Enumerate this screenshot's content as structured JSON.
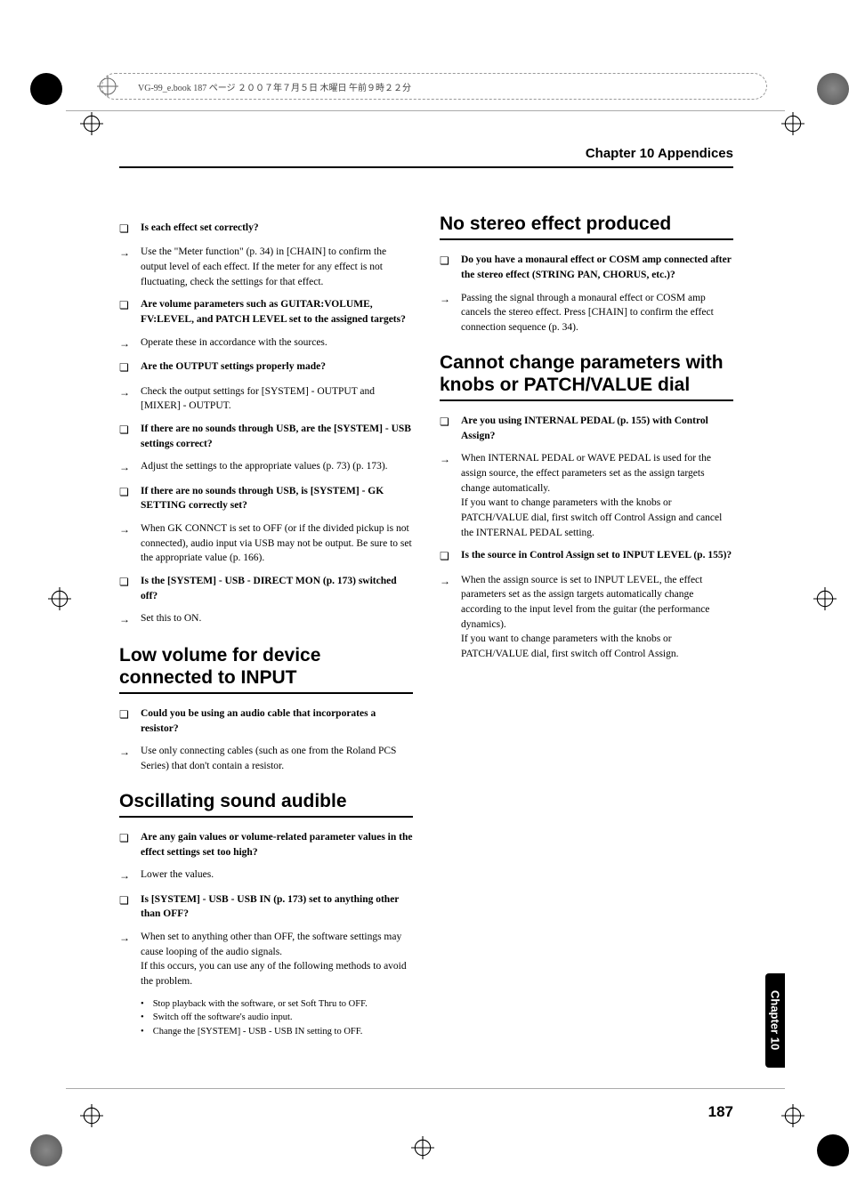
{
  "meta_bar": "VG-99_e.book 187 ページ ２００７年７月５日 木曜日 午前９時２２分",
  "chapter_header": "Chapter 10 Appendices",
  "side_tab": "Chapter 10",
  "page_number": "187",
  "colors": {
    "text": "#000000",
    "rule": "#000000",
    "light_rule": "#aaaaaa",
    "dash": "#999999"
  },
  "left": {
    "items1": [
      {
        "q": true,
        "text": "Is each effect set correctly?"
      },
      {
        "q": false,
        "text": "Use the \"Meter function\" (p. 34) in [CHAIN] to confirm the output level of each effect. If the meter for any effect is not fluctuating, check the settings for that effect."
      },
      {
        "q": true,
        "text": "Are volume parameters such as GUITAR:VOLUME, FV:LEVEL, and PATCH LEVEL set to the assigned targets?"
      },
      {
        "q": false,
        "text": "Operate these in accordance with the sources."
      },
      {
        "q": true,
        "text": "Are the OUTPUT settings properly made?"
      },
      {
        "q": false,
        "text": "Check the output settings for [SYSTEM] - OUTPUT and [MIXER]  - OUTPUT."
      },
      {
        "q": true,
        "text": "If there are no sounds through USB, are the [SYSTEM]  - USB settings correct?"
      },
      {
        "q": false,
        "text": "Adjust the settings to the appropriate values (p. 73) (p. 173)."
      },
      {
        "q": true,
        "text": "If there are no sounds through USB, is [SYSTEM]  - GK SETTING correctly set?"
      },
      {
        "q": false,
        "text": "When GK CONNCT is set to OFF (or if the divided pickup is not connected), audio input via USB may not be output. Be sure to set the appropriate value (p. 166)."
      },
      {
        "q": true,
        "text": "Is the [SYSTEM] - USB - DIRECT MON (p. 173) switched off?"
      },
      {
        "q": false,
        "text": "Set this to ON."
      }
    ],
    "h2a": "Low volume for device connected to INPUT",
    "items2": [
      {
        "q": true,
        "text": "Could you be using an audio cable that incorporates a resistor?"
      },
      {
        "q": false,
        "text": "Use only connecting cables (such as one from the Roland PCS Series) that don't contain a resistor."
      }
    ],
    "h2b": "Oscillating sound audible",
    "items3": [
      {
        "q": true,
        "text": "Are any gain values or volume-related parameter values in the effect settings set too high?"
      },
      {
        "q": false,
        "text": "Lower the values."
      },
      {
        "q": true,
        "text": "Is [SYSTEM] - USB - USB IN (p. 173) set to anything other than OFF?"
      },
      {
        "q": false,
        "text": "When set to anything other than OFF, the software settings may cause looping of the audio signals.\nIf this occurs, you can use any of the following methods to avoid the problem."
      }
    ],
    "sub_bullets": [
      "Stop playback with the software, or set Soft Thru to OFF.",
      "Switch off the software's audio input.",
      "Change the [SYSTEM] - USB - USB IN setting to OFF."
    ]
  },
  "right": {
    "h2a": "No stereo effect produced",
    "items1": [
      {
        "q": true,
        "text": "Do you have a monaural effect or COSM amp connected after the stereo effect (STRING PAN, CHORUS, etc.)?"
      },
      {
        "q": false,
        "text": "Passing the signal through a monaural effect or COSM amp cancels the stereo effect. Press [CHAIN] to confirm the effect connection sequence (p. 34)."
      }
    ],
    "h2b": "Cannot change parameters with knobs or PATCH/VALUE dial",
    "items2": [
      {
        "q": true,
        "text": "Are you using INTERNAL PEDAL (p. 155) with Control Assign?"
      },
      {
        "q": false,
        "text": "When INTERNAL PEDAL or WAVE PEDAL is used for the assign source, the effect parameters set as the assign targets change automatically.\nIf you want to change parameters with the knobs or PATCH/VALUE dial, first switch off Control Assign and cancel the INTERNAL PEDAL setting."
      },
      {
        "q": true,
        "text": "Is the source in Control Assign set to INPUT LEVEL (p. 155)?"
      },
      {
        "q": false,
        "text": "When the assign source is set to INPUT LEVEL, the effect parameters set as the assign targets automatically change according to the input level from the guitar (the performance dynamics).\nIf you want to change parameters with the knobs or PATCH/VALUE dial, first switch off Control Assign."
      }
    ]
  }
}
